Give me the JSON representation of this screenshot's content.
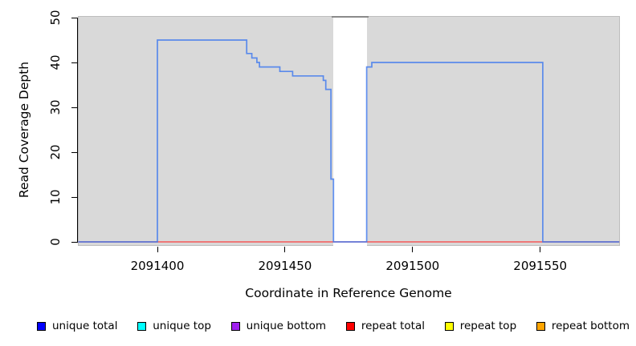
{
  "chart_data": {
    "type": "line",
    "title": "",
    "xlabel": "Coordinate in Reference Genome",
    "ylabel": "Read Coverage Depth",
    "xlim": [
      2091369,
      2091581
    ],
    "ylim": [
      0,
      50
    ],
    "x_ticks": [
      2091400,
      2091450,
      2091500,
      2091550
    ],
    "y_ticks": [
      0,
      10,
      20,
      30,
      40,
      50
    ],
    "panel_background": "#D9D9D9",
    "grid": "off",
    "legend_position": "bottom",
    "gap_region": {
      "start": 2091469,
      "end": 2091482,
      "fill": "#FFFFFF",
      "cap_color": "#8a8a8a"
    },
    "series": [
      {
        "name": "repeat total",
        "line_color": "#FF2222",
        "opacity": 0.85,
        "width": 1.3,
        "points": [
          [
            2091369,
            0
          ],
          [
            2091581,
            0
          ]
        ]
      },
      {
        "name": "unique total",
        "line_color": "#3A76EF",
        "opacity": 0.8,
        "width": 1.7,
        "points": [
          [
            2091369,
            0
          ],
          [
            2091400,
            0
          ],
          [
            2091400,
            45
          ],
          [
            2091435,
            45
          ],
          [
            2091435,
            42
          ],
          [
            2091437,
            42
          ],
          [
            2091437,
            41
          ],
          [
            2091439,
            41
          ],
          [
            2091439,
            40
          ],
          [
            2091440,
            40
          ],
          [
            2091440,
            39
          ],
          [
            2091448,
            39
          ],
          [
            2091448,
            38
          ],
          [
            2091453,
            38
          ],
          [
            2091453,
            37
          ],
          [
            2091465,
            37
          ],
          [
            2091465,
            36
          ],
          [
            2091466,
            36
          ],
          [
            2091466,
            34
          ],
          [
            2091468,
            34
          ],
          [
            2091468,
            14
          ],
          [
            2091469,
            14
          ],
          [
            2091469,
            0
          ],
          [
            2091482,
            0
          ],
          [
            2091482,
            39
          ],
          [
            2091484,
            39
          ],
          [
            2091484,
            40
          ],
          [
            2091551,
            40
          ],
          [
            2091551,
            0
          ],
          [
            2091581,
            0
          ]
        ]
      }
    ],
    "legend": [
      {
        "label": "unique total",
        "color": "#0000FF"
      },
      {
        "label": "unique top",
        "color": "#00FFFF"
      },
      {
        "label": "unique bottom",
        "color": "#A020F0"
      },
      {
        "label": "repeat total",
        "color": "#FF0000"
      },
      {
        "label": "repeat top",
        "color": "#FFFF00"
      },
      {
        "label": "repeat bottom",
        "color": "#FFA500"
      }
    ]
  }
}
